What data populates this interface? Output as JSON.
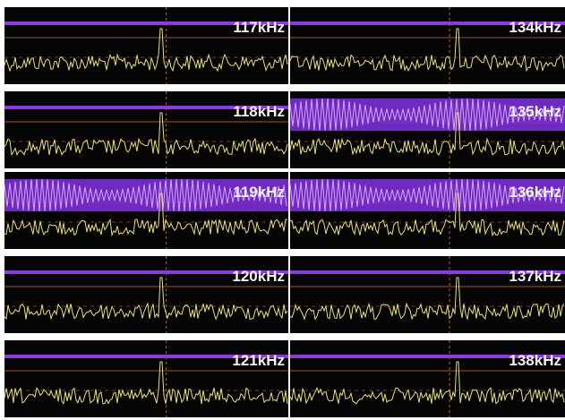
{
  "rows": [
    {
      "left": "117kHz",
      "right": "134kHz"
    },
    {
      "left": "118kHz",
      "right": "135kHz"
    },
    {
      "left": "119kHz",
      "right": "136kHz"
    },
    {
      "left": "120kHz",
      "right": "137kHz"
    },
    {
      "left": "121kHz",
      "right": "138kHz"
    }
  ]
}
